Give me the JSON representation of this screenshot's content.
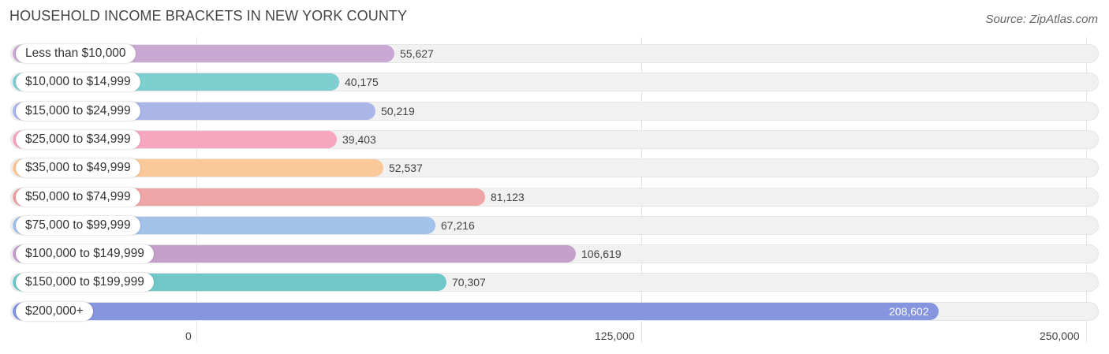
{
  "header": {
    "title": "HOUSEHOLD INCOME BRACKETS IN NEW YORK COUNTY",
    "source": "Source: ZipAtlas.com"
  },
  "chart_data": {
    "type": "bar",
    "orientation": "horizontal",
    "title": "HOUSEHOLD INCOME BRACKETS IN NEW YORK COUNTY",
    "categories": [
      "Less than $10,000",
      "$10,000 to $14,999",
      "$15,000 to $24,999",
      "$25,000 to $34,999",
      "$35,000 to $49,999",
      "$50,000 to $74,999",
      "$75,000 to $99,999",
      "$100,000 to $149,999",
      "$150,000 to $199,999",
      "$200,000+"
    ],
    "values": [
      55627,
      40175,
      50219,
      39403,
      52537,
      81123,
      67216,
      106619,
      70307,
      208602
    ],
    "value_labels": [
      "55,627",
      "40,175",
      "50,219",
      "39,403",
      "52,537",
      "81,123",
      "67,216",
      "106,619",
      "70,307",
      "208,602"
    ],
    "colors": [
      "#c9a9d3",
      "#7ecfd0",
      "#aab6e8",
      "#f7a6c0",
      "#fbc999",
      "#eea5a5",
      "#a3c2ea",
      "#c4a0cb",
      "#71c7c8",
      "#8595e0"
    ],
    "xlim": [
      0,
      250000
    ],
    "x_ticks": [
      0,
      125000,
      250000
    ],
    "x_tick_labels": [
      "0",
      "125,000",
      "250,000"
    ],
    "grid": true,
    "legend": "none"
  }
}
